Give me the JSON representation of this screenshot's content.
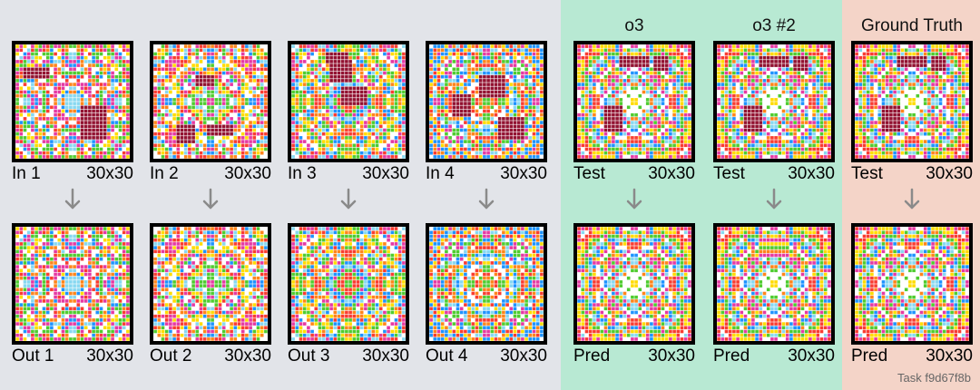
{
  "sections": {
    "train": {
      "color": "#e2e4e9"
    },
    "o3": {
      "color": "#b8e9d3"
    },
    "ground_truth": {
      "color": "#f4d4c8"
    }
  },
  "headings": {
    "o3": "o3",
    "o3_2": "o3 #2",
    "ground_truth": "Ground Truth"
  },
  "pairs": [
    {
      "in_label": "In 1",
      "in_size": "30x30",
      "out_label": "Out 1",
      "out_size": "30x30"
    },
    {
      "in_label": "In 2",
      "in_size": "30x30",
      "out_label": "Out 2",
      "out_size": "30x30"
    },
    {
      "in_label": "In 3",
      "in_size": "30x30",
      "out_label": "Out 3",
      "out_size": "30x30"
    },
    {
      "in_label": "In 4",
      "in_size": "30x30",
      "out_label": "Out 4",
      "out_size": "30x30"
    },
    {
      "in_label": "Test",
      "in_size": "30x30",
      "out_label": "Pred",
      "out_size": "30x30"
    },
    {
      "in_label": "Test",
      "in_size": "30x30",
      "out_label": "Pred",
      "out_size": "30x30"
    },
    {
      "in_label": "Test",
      "in_size": "30x30",
      "out_label": "Pred",
      "out_size": "30x30"
    }
  ],
  "grid_size": [
    30,
    30
  ],
  "arc_palette": [
    "#000000",
    "#1e93ff",
    "#f93c31",
    "#4fcc30",
    "#ffdc00",
    "#999999",
    "#e53aa3",
    "#ff851b",
    "#87d8f1",
    "#921231",
    "#ffffff"
  ],
  "arrow_color": "#8a8a8a",
  "task_id": "Task f9d67f8b"
}
